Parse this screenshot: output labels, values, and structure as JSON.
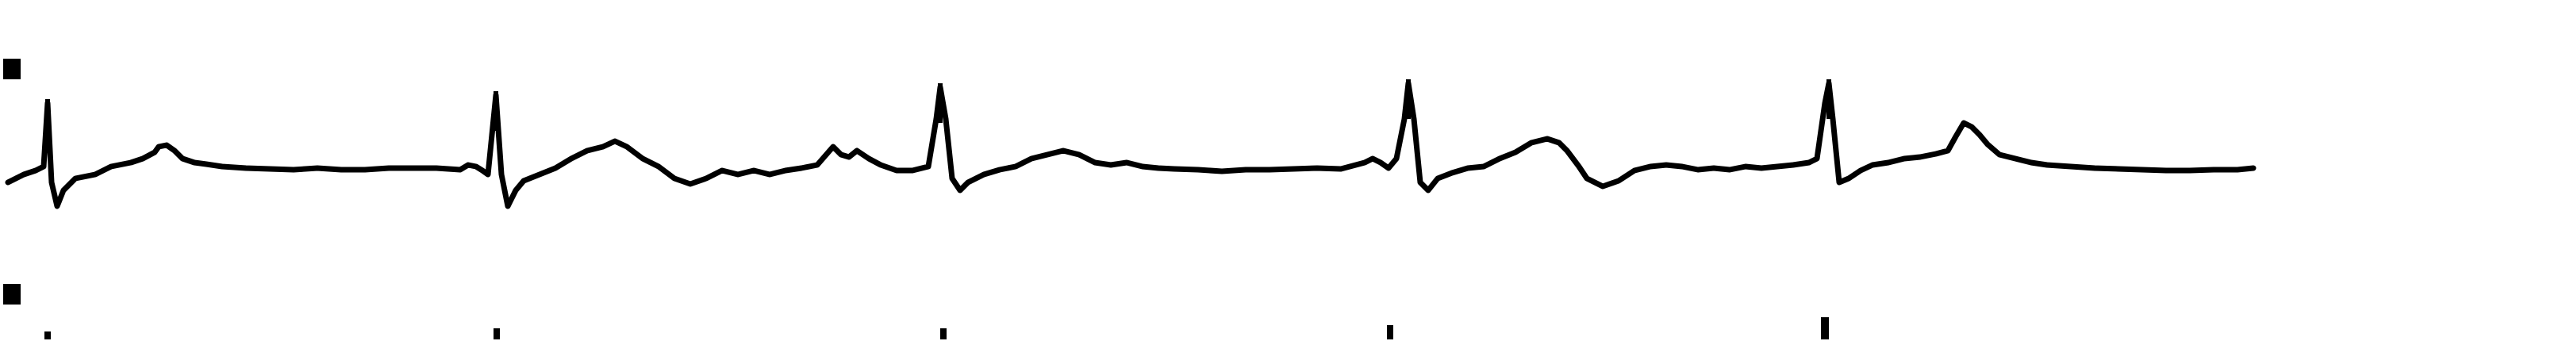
{
  "strip": {
    "background_color": "#ffffff",
    "trace_color": "#000000",
    "lead_marker_icon": "square-marker-icon",
    "beat_marker_icon": "tick-marker-icon"
  },
  "leads": [
    {
      "id": "lead-1",
      "beats_visible": 5,
      "has_lead_marker": true
    },
    {
      "id": "lead-2",
      "beats_visible": 5,
      "has_lead_marker": true
    }
  ]
}
